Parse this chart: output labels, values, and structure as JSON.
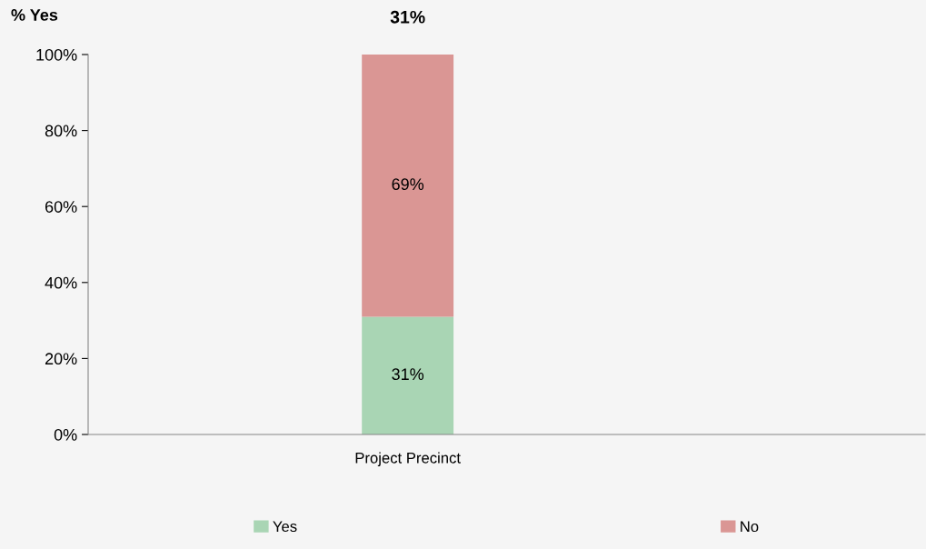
{
  "chart_data": {
    "type": "bar",
    "stacked": true,
    "ylabel": "% Yes",
    "categories": [
      "Project Precinct"
    ],
    "series": [
      {
        "name": "Yes",
        "color": "#a9d5b4",
        "values": [
          31
        ],
        "value_labels": [
          "31%"
        ]
      },
      {
        "name": "No",
        "color": "#da9694",
        "values": [
          69
        ],
        "value_labels": [
          "69%"
        ]
      }
    ],
    "annotations": [
      "31%"
    ],
    "ylim": [
      0,
      100
    ],
    "yticks": [
      {
        "value": 0,
        "label": "0%"
      },
      {
        "value": 20,
        "label": "20%"
      },
      {
        "value": 40,
        "label": "40%"
      },
      {
        "value": 60,
        "label": "60%"
      },
      {
        "value": 80,
        "label": "80%"
      },
      {
        "value": 100,
        "label": "100%"
      }
    ],
    "grid": false,
    "legend": "bottom"
  }
}
